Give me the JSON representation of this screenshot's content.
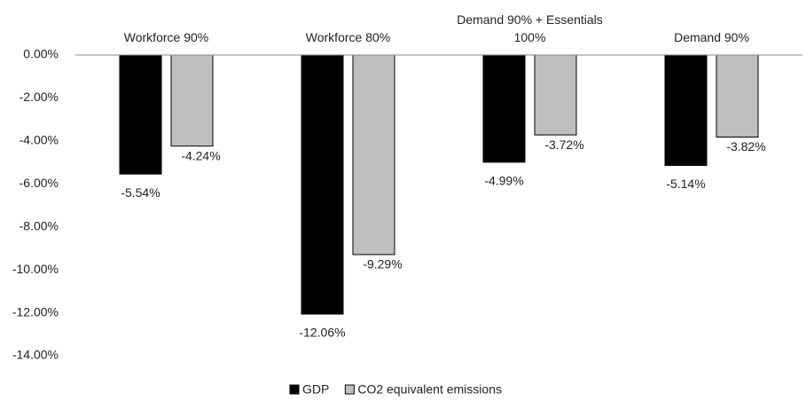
{
  "chart_data": {
    "type": "bar",
    "categories": [
      "Workforce 90%",
      "Workforce 80%",
      "Demand 90% + Essentials 100%",
      "Demand 90%"
    ],
    "series": [
      {
        "name": "GDP",
        "color": "#000000",
        "values": [
          -5.54,
          -12.06,
          -4.99,
          -5.14
        ],
        "value_labels": [
          "-5.54%",
          "-12.06%",
          "-4.99%",
          "-5.14%"
        ]
      },
      {
        "name": "CO2 equivalent emissions",
        "color": "#bfbfbf",
        "values": [
          -4.24,
          -9.29,
          -3.72,
          -3.82
        ],
        "value_labels": [
          "-4.24%",
          "-9.29%",
          "-3.72%",
          "-3.82%"
        ]
      }
    ],
    "ylim": [
      -14,
      0
    ],
    "yticks": [
      {
        "value": 0,
        "label": "0.00%"
      },
      {
        "value": -2,
        "label": "-2.00%"
      },
      {
        "value": -4,
        "label": "-4.00%"
      },
      {
        "value": -6,
        "label": "-6.00%"
      },
      {
        "value": -8,
        "label": "-8.00%"
      },
      {
        "value": -10,
        "label": "-10.00%"
      },
      {
        "value": -12,
        "label": "-12.00%"
      },
      {
        "value": -14,
        "label": "-14.00%"
      }
    ],
    "grid": false,
    "legend": "bottom"
  }
}
